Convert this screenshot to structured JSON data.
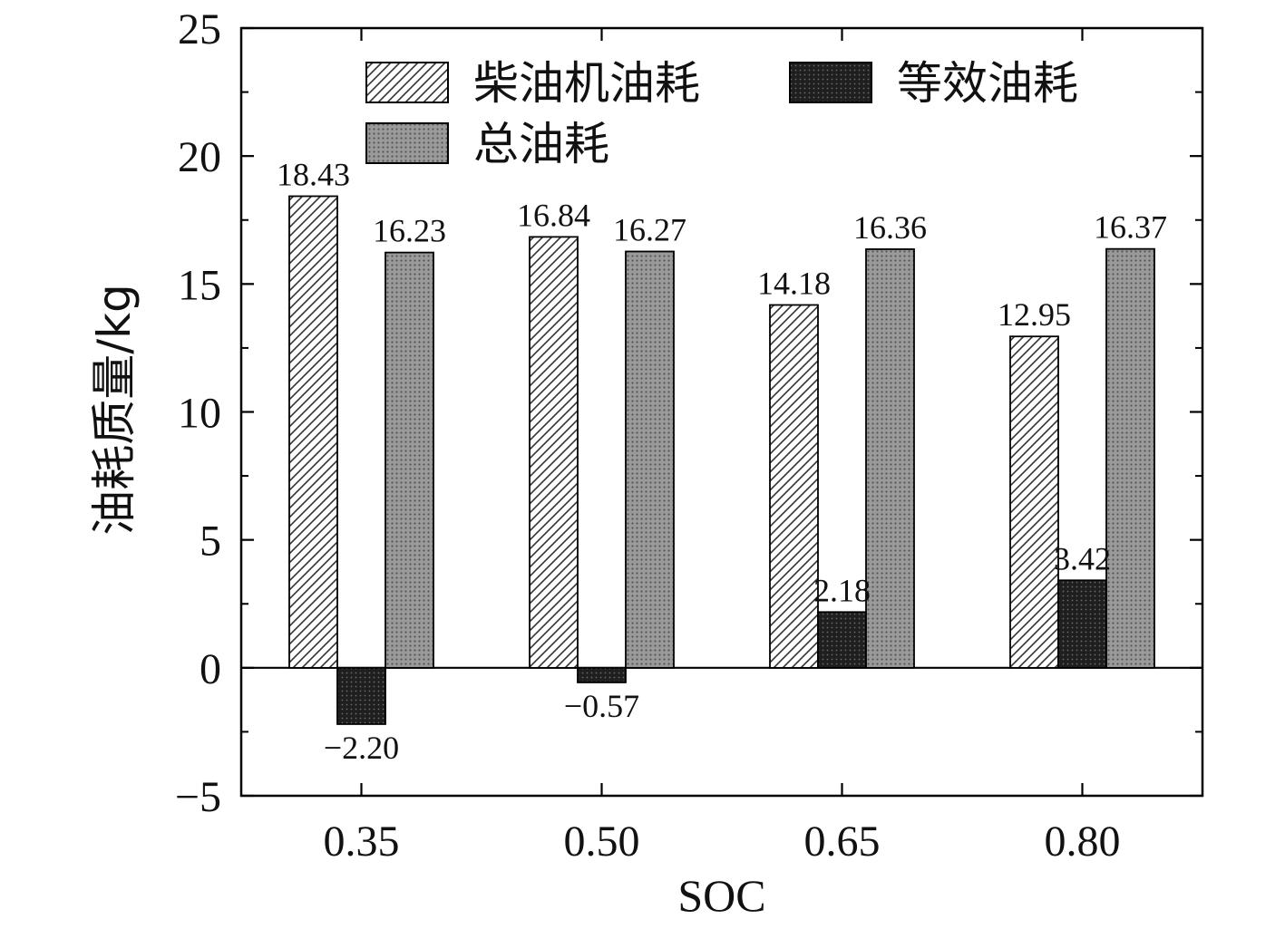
{
  "chart_data": {
    "type": "bar",
    "categories": [
      "0.35",
      "0.50",
      "0.65",
      "0.80"
    ],
    "series": [
      {
        "name": "柴油机油耗",
        "values": [
          18.43,
          16.84,
          14.18,
          12.95
        ],
        "labels": [
          "18.43",
          "16.84",
          "14.18",
          "12.95"
        ],
        "fill": "hatch",
        "color": "#ffffff"
      },
      {
        "name": "等效油耗",
        "values": [
          -2.2,
          -0.57,
          2.18,
          3.42
        ],
        "labels": [
          "−2.20",
          "−0.57",
          "2.18",
          "3.42"
        ],
        "fill": "dark-dots",
        "color": "#1a1a1a"
      },
      {
        "name": "总油耗",
        "values": [
          16.23,
          16.27,
          16.36,
          16.37
        ],
        "labels": [
          "16.23",
          "16.27",
          "16.36",
          "16.37"
        ],
        "fill": "gray-dots",
        "color": "#8a8a8a"
      }
    ],
    "xlabel": "SOC",
    "ylabel": "油耗质量/kg",
    "ylim": [
      -5,
      25
    ],
    "yticks": [
      -5,
      0,
      5,
      10,
      15,
      20,
      25
    ],
    "ytick_labels": [
      "−5",
      "0",
      "5",
      "10",
      "15",
      "20",
      "25"
    ],
    "legend_position": "top",
    "grid": false
  }
}
